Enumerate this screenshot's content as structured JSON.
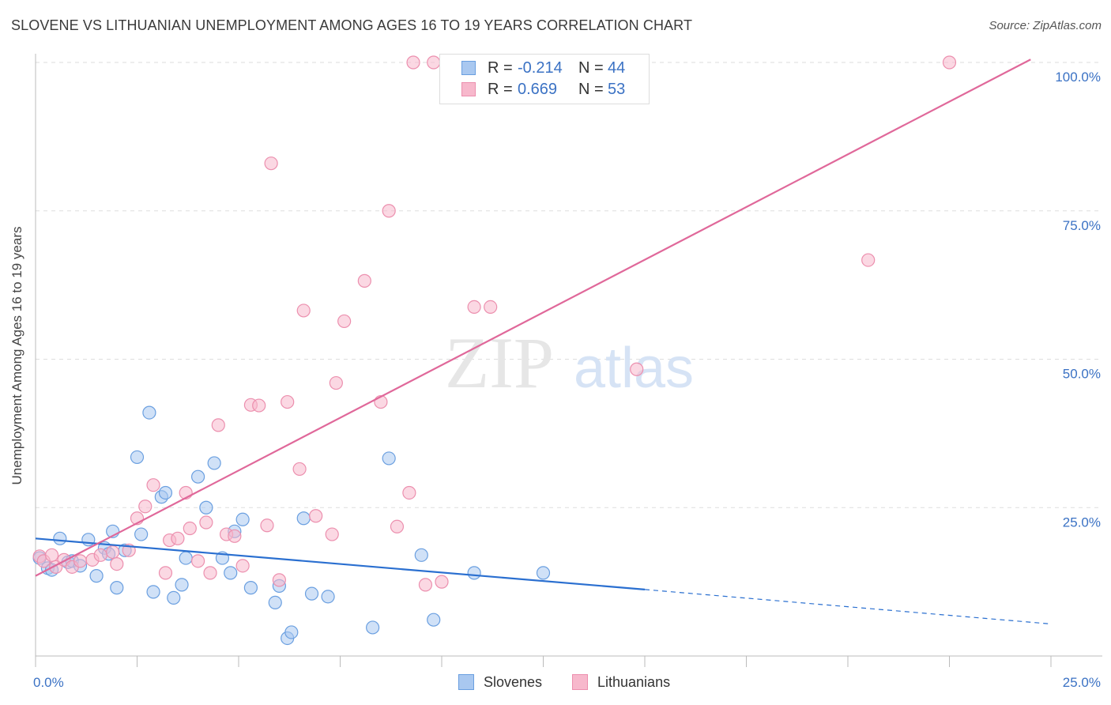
{
  "title": "SLOVENE VS LITHUANIAN UNEMPLOYMENT AMONG AGES 16 TO 19 YEARS CORRELATION CHART",
  "source": "Source: ZipAtlas.com",
  "watermark": {
    "zip": "ZIP",
    "atlas": "atlas"
  },
  "legend_top": {
    "rows": [
      {
        "r_label": "R =",
        "r_value": "-0.214",
        "n_label": "N =",
        "n_value": "44"
      },
      {
        "r_label": "R =",
        "r_value": "0.669",
        "n_label": "N =",
        "n_value": "53"
      }
    ]
  },
  "legend_bottom": {
    "slovenes": "Slovenes",
    "lithuanians": "Lithuanians"
  },
  "colors": {
    "slovenes_fill": "#a9c8f0",
    "slovenes_stroke": "#6a9fe0",
    "slovenes_line": "#2a6fd0",
    "lithuanians_fill": "#f7b8cc",
    "lithuanians_stroke": "#ec8fae",
    "lithuanians_line": "#e0689a",
    "tick_text": "#3b72c4",
    "grid": "#dddddd"
  },
  "chart_data": {
    "type": "scatter",
    "ylabel": "Unemployment Among Ages 16 to 19 years",
    "xlim": [
      0,
      25
    ],
    "ylim": [
      0,
      103
    ],
    "x_tick_labels": [
      "0.0%",
      "25.0%"
    ],
    "y_ticks": [
      25,
      50,
      75,
      100
    ],
    "y_tick_labels": [
      "25.0%",
      "50.0%",
      "75.0%",
      "100.0%"
    ],
    "grid": true,
    "legend_position": "top-center",
    "series": [
      {
        "name": "Slovenes",
        "r": -0.214,
        "n": 44,
        "trend": {
          "x0": 0,
          "y0": 19.8,
          "x1": 15,
          "y1": 11.2,
          "dashed_to_x": 25,
          "dashed_to_y": 5.4
        },
        "points": [
          [
            0.1,
            16.5
          ],
          [
            0.3,
            14.8
          ],
          [
            0.4,
            14.5
          ],
          [
            0.6,
            19.8
          ],
          [
            0.8,
            15.8
          ],
          [
            0.9,
            16.0
          ],
          [
            1.1,
            15.2
          ],
          [
            1.3,
            19.6
          ],
          [
            1.5,
            13.5
          ],
          [
            1.7,
            18.2
          ],
          [
            1.8,
            17.2
          ],
          [
            1.9,
            21.0
          ],
          [
            2.0,
            11.5
          ],
          [
            2.2,
            17.8
          ],
          [
            2.5,
            33.5
          ],
          [
            2.6,
            20.5
          ],
          [
            2.8,
            41.0
          ],
          [
            2.9,
            10.8
          ],
          [
            3.1,
            26.8
          ],
          [
            3.2,
            27.5
          ],
          [
            3.4,
            9.8
          ],
          [
            3.6,
            12.0
          ],
          [
            3.7,
            16.5
          ],
          [
            4.0,
            30.2
          ],
          [
            4.2,
            25.0
          ],
          [
            4.4,
            32.5
          ],
          [
            4.6,
            16.5
          ],
          [
            4.8,
            14.0
          ],
          [
            4.9,
            21.0
          ],
          [
            5.1,
            23.0
          ],
          [
            5.3,
            11.5
          ],
          [
            5.9,
            9.0
          ],
          [
            6.0,
            11.8
          ],
          [
            6.2,
            3.0
          ],
          [
            6.3,
            4.0
          ],
          [
            6.6,
            23.2
          ],
          [
            6.8,
            10.5
          ],
          [
            7.2,
            10.0
          ],
          [
            8.3,
            4.8
          ],
          [
            8.7,
            33.3
          ],
          [
            9.5,
            17.0
          ],
          [
            9.8,
            6.1
          ],
          [
            10.8,
            14.0
          ],
          [
            12.5,
            14.0
          ]
        ]
      },
      {
        "name": "Lithuanians",
        "r": 0.669,
        "n": 53,
        "trend": {
          "x0": 0,
          "y0": 13.5,
          "x1": 24.5,
          "y1": 100.5
        },
        "points": [
          [
            0.1,
            16.8
          ],
          [
            0.2,
            16.0
          ],
          [
            0.4,
            17.0
          ],
          [
            0.5,
            15.0
          ],
          [
            0.7,
            16.2
          ],
          [
            0.9,
            15.0
          ],
          [
            1.1,
            16.0
          ],
          [
            1.4,
            16.2
          ],
          [
            1.6,
            17.0
          ],
          [
            1.9,
            17.5
          ],
          [
            2.0,
            15.5
          ],
          [
            2.3,
            17.8
          ],
          [
            2.5,
            23.2
          ],
          [
            2.7,
            25.2
          ],
          [
            2.9,
            28.8
          ],
          [
            3.2,
            14.0
          ],
          [
            3.3,
            19.5
          ],
          [
            3.5,
            19.8
          ],
          [
            3.7,
            27.5
          ],
          [
            3.8,
            21.5
          ],
          [
            4.0,
            16.0
          ],
          [
            4.2,
            22.5
          ],
          [
            4.3,
            14.0
          ],
          [
            4.5,
            38.9
          ],
          [
            4.7,
            20.5
          ],
          [
            4.9,
            20.2
          ],
          [
            5.1,
            15.2
          ],
          [
            5.3,
            42.3
          ],
          [
            5.5,
            42.2
          ],
          [
            5.7,
            22.0
          ],
          [
            5.8,
            83.0
          ],
          [
            6.0,
            12.8
          ],
          [
            6.2,
            42.8
          ],
          [
            6.5,
            31.5
          ],
          [
            6.6,
            58.2
          ],
          [
            6.9,
            23.6
          ],
          [
            7.3,
            20.5
          ],
          [
            7.4,
            46.0
          ],
          [
            7.6,
            56.4
          ],
          [
            8.1,
            63.2
          ],
          [
            8.5,
            42.8
          ],
          [
            8.7,
            75.0
          ],
          [
            8.9,
            21.8
          ],
          [
            9.2,
            27.5
          ],
          [
            9.3,
            100.0
          ],
          [
            9.6,
            12.0
          ],
          [
            9.8,
            100.0
          ],
          [
            10.0,
            12.5
          ],
          [
            10.8,
            58.8
          ],
          [
            11.2,
            58.8
          ],
          [
            14.8,
            48.3
          ],
          [
            20.5,
            66.7
          ],
          [
            22.5,
            100.0
          ]
        ]
      }
    ]
  }
}
